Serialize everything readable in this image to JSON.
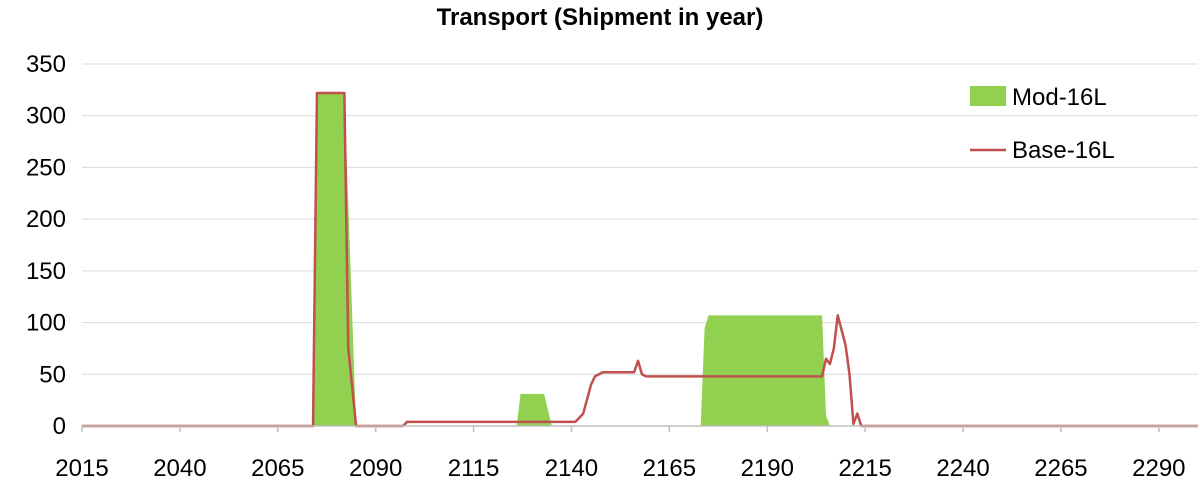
{
  "chart_data": {
    "type": "line",
    "title": "Transport (Shipment in year)",
    "xlabel": "",
    "ylabel": "",
    "xlim": [
      2015,
      2300
    ],
    "ylim": [
      0,
      350
    ],
    "y_ticks": [
      0,
      50,
      100,
      150,
      200,
      250,
      300,
      350
    ],
    "x_ticks": [
      2015,
      2040,
      2065,
      2090,
      2115,
      2140,
      2165,
      2190,
      2215,
      2240,
      2265,
      2290
    ],
    "grid": true,
    "legend_position": "top-right",
    "colors": {
      "mod": "#92d050",
      "base": "#c0504d",
      "grid": "#d9d9d9"
    },
    "series": [
      {
        "name": "Mod-16L",
        "style": "area",
        "points": [
          [
            2015,
            0
          ],
          [
            2074,
            0
          ],
          [
            2075,
            322
          ],
          [
            2082,
            322
          ],
          [
            2085,
            0
          ],
          [
            2126,
            0
          ],
          [
            2127,
            31
          ],
          [
            2133,
            31
          ],
          [
            2135,
            0
          ],
          [
            2173,
            0
          ],
          [
            2174,
            95
          ],
          [
            2175,
            107
          ],
          [
            2204,
            107
          ],
          [
            2205,
            10
          ],
          [
            2206,
            0
          ],
          [
            2300,
            0
          ]
        ]
      },
      {
        "name": "Base-16L",
        "style": "line",
        "points": [
          [
            2015,
            0
          ],
          [
            2074,
            0
          ],
          [
            2075,
            322
          ],
          [
            2082,
            322
          ],
          [
            2083,
            75
          ],
          [
            2085,
            0
          ],
          [
            2097,
            0
          ],
          [
            2098,
            4
          ],
          [
            2141,
            4
          ],
          [
            2143,
            12
          ],
          [
            2145,
            40
          ],
          [
            2146,
            48
          ],
          [
            2148,
            52
          ],
          [
            2156,
            52
          ],
          [
            2157,
            63
          ],
          [
            2158,
            50
          ],
          [
            2159,
            48
          ],
          [
            2204,
            48
          ],
          [
            2205,
            65
          ],
          [
            2206,
            60
          ],
          [
            2207,
            75
          ],
          [
            2208,
            107
          ],
          [
            2210,
            78
          ],
          [
            2211,
            50
          ],
          [
            2212,
            2
          ],
          [
            2213,
            12
          ],
          [
            2214,
            0
          ],
          [
            2300,
            0
          ]
        ]
      }
    ]
  }
}
